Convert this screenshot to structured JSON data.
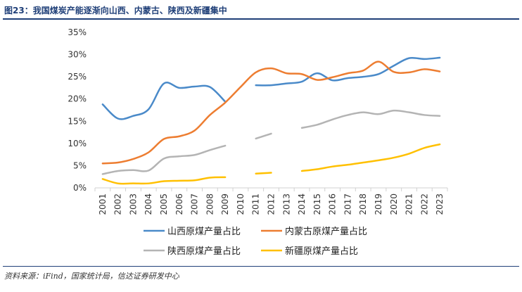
{
  "header": {
    "title": "图23：我国煤炭产能逐渐向山西、内蒙古、陕西及新疆集中"
  },
  "footer": {
    "source": "资料来源：iFind，国家统计局，信达证券研发中心"
  },
  "chart_data": {
    "type": "line",
    "title": "图23：我国煤炭产能逐渐向山西、内蒙古、陕西及新疆集中",
    "xlabel": "",
    "ylabel": "",
    "ylim": [
      0,
      35
    ],
    "yticks": [
      "0%",
      "5%",
      "10%",
      "15%",
      "20%",
      "25%",
      "30%",
      "35%"
    ],
    "grid": false,
    "legend_position": "bottom",
    "categories": [
      "2001",
      "2002",
      "2003",
      "2004",
      "2005",
      "2006",
      "2007",
      "2008",
      "2009",
      "2010",
      "2011",
      "2012",
      "2013",
      "2014",
      "2015",
      "2016",
      "2017",
      "2018",
      "2019",
      "2020",
      "2021",
      "2022",
      "2023"
    ],
    "series": [
      {
        "name": "山西原煤产量占比",
        "color": "#4a8ac9",
        "values": [
          18.8,
          15.6,
          16.2,
          17.7,
          23.5,
          22.5,
          22.8,
          22.7,
          19.4,
          null,
          23.1,
          23.1,
          23.5,
          23.9,
          25.8,
          24.2,
          24.7,
          25.0,
          25.6,
          27.5,
          29.2,
          29.0,
          29.3
        ]
      },
      {
        "name": "内蒙古原煤产量占比",
        "color": "#ed7d31",
        "values": [
          5.5,
          5.7,
          6.5,
          8.0,
          11.0,
          11.6,
          12.9,
          16.4,
          19.2,
          22.7,
          26.0,
          26.9,
          25.8,
          25.6,
          24.3,
          24.9,
          25.8,
          26.4,
          28.4,
          26.1,
          26.0,
          26.7,
          26.2
        ]
      },
      {
        "name": "陕西原煤产量占比",
        "color": "#b4b4b4",
        "values": [
          3.1,
          3.8,
          4.0,
          3.9,
          6.6,
          7.1,
          7.4,
          8.5,
          9.5,
          null,
          11.1,
          12.2,
          null,
          13.5,
          14.2,
          15.4,
          16.4,
          17.0,
          16.6,
          17.4,
          17.0,
          16.4,
          16.2
        ]
      },
      {
        "name": "新疆原煤产量占比",
        "color": "#ffc000",
        "values": [
          2.0,
          1.0,
          1.0,
          1.0,
          1.5,
          1.6,
          1.7,
          2.3,
          2.4,
          null,
          3.2,
          3.4,
          null,
          3.8,
          4.2,
          4.8,
          5.2,
          5.7,
          6.2,
          6.8,
          7.7,
          9.0,
          9.8
        ]
      }
    ]
  }
}
